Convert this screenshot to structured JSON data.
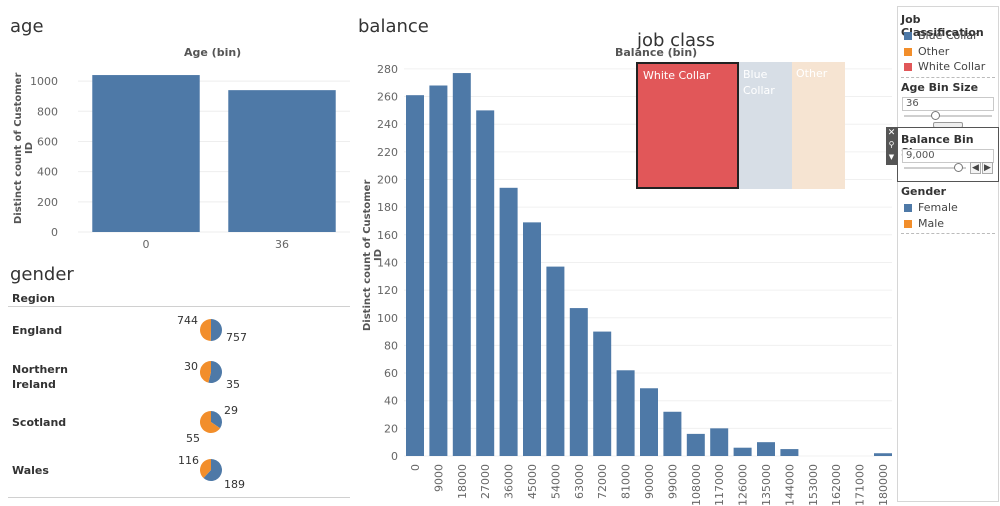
{
  "age": {
    "title": "age",
    "header": "Age (bin)",
    "y_title": "Distinct count of Customer ID"
  },
  "gender": {
    "title": "gender",
    "region_header": "Region",
    "rows": [
      {
        "region": "England",
        "female": 757,
        "male": 744
      },
      {
        "region": "Northern Ireland",
        "female": 35,
        "male": 30
      },
      {
        "region": "Scotland",
        "female": 29,
        "male": 55
      },
      {
        "region": "Wales",
        "female": 189,
        "male": 116
      }
    ]
  },
  "balance": {
    "title": "balance",
    "header": "Balance (bin)",
    "y_title": "Distinct count of Customer ID"
  },
  "job_class": {
    "title": "job class",
    "boxes": [
      {
        "label": "White Collar"
      },
      {
        "label": "Blue Collar"
      },
      {
        "label": "Other"
      }
    ]
  },
  "legend": {
    "job_title": "Job Classification",
    "job_items": [
      {
        "label": "Blue Collar",
        "color": "#4e79a7"
      },
      {
        "label": "Other",
        "color": "#f28e2b"
      },
      {
        "label": "White Collar",
        "color": "#e15759"
      }
    ],
    "age_bin_title": "Age Bin Size",
    "age_bin_value": "36",
    "balance_bin_title": "Balance Bin Size",
    "balance_bin_value": "9,000",
    "gender_title": "Gender",
    "gender_items": [
      {
        "label": "Female",
        "color": "#4e79a7"
      },
      {
        "label": "Male",
        "color": "#f28e2b"
      }
    ]
  },
  "colors": {
    "blue": "#4e79a7",
    "orange": "#f28e2b",
    "red": "#e15759"
  },
  "chart_data": [
    {
      "type": "bar",
      "title": "age",
      "xlabel": "Age (bin)",
      "ylabel": "Distinct count of Customer ID",
      "categories": [
        "0",
        "36"
      ],
      "values": [
        1040,
        940
      ],
      "ylim": [
        0,
        1100
      ],
      "yticks": [
        0,
        200,
        400,
        600,
        800,
        1000
      ]
    },
    {
      "type": "bar",
      "title": "balance",
      "xlabel": "Balance (bin)",
      "ylabel": "Distinct count of Customer ID",
      "categories": [
        "0",
        "9000",
        "18000",
        "27000",
        "36000",
        "45000",
        "54000",
        "63000",
        "72000",
        "81000",
        "90000",
        "99000",
        "108000",
        "117000",
        "126000",
        "135000",
        "144000",
        "153000",
        "162000",
        "171000",
        "180000"
      ],
      "values": [
        261,
        268,
        277,
        250,
        194,
        169,
        137,
        107,
        90,
        62,
        49,
        32,
        16,
        20,
        6,
        10,
        5,
        0,
        0,
        0,
        2
      ],
      "ylim": [
        0,
        285
      ],
      "yticks": [
        0,
        20,
        40,
        60,
        80,
        100,
        120,
        140,
        160,
        180,
        200,
        220,
        240,
        260,
        280
      ]
    }
  ]
}
